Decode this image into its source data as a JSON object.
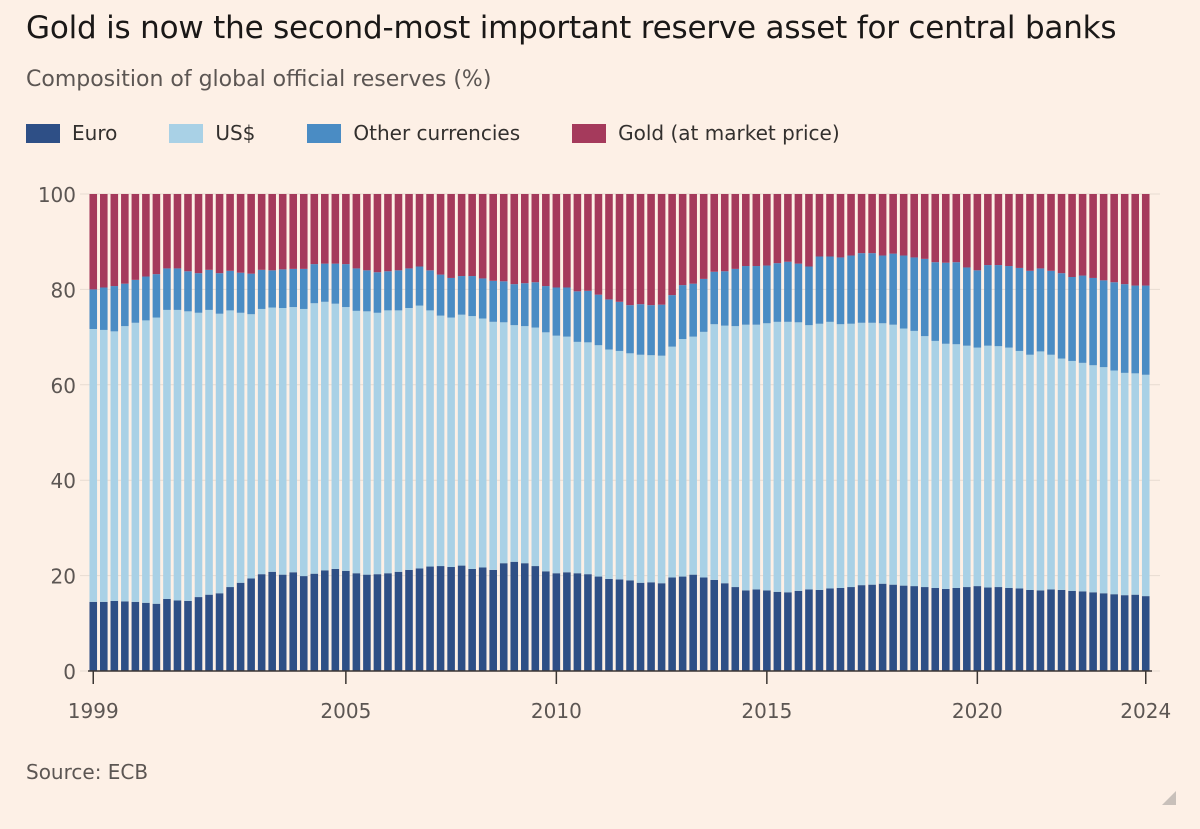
{
  "title": "Gold is now the second-most important reserve asset for central banks",
  "subtitle": "Composition of global official reserves (%)",
  "source": "Source: ECB",
  "colors": {
    "background": "#fdf0e6",
    "euro": "#2e4f86",
    "usd": "#a9d1e6",
    "other": "#4a8cc4",
    "gold": "#a53a5c",
    "grid": "#e7dbd1"
  },
  "legend": [
    {
      "label": "Euro",
      "color": "#2e4f86"
    },
    {
      "label": "US$",
      "color": "#a9d1e6"
    },
    {
      "label": "Other currencies",
      "color": "#4a8cc4"
    },
    {
      "label": "Gold (at market price)",
      "color": "#a53a5c"
    }
  ],
  "chart_data": {
    "type": "bar",
    "stacked": true,
    "frequency": "quarterly",
    "x_start": 1999,
    "ylim": [
      0,
      100
    ],
    "yticks": [
      0,
      20,
      40,
      60,
      80,
      100
    ],
    "xticks": [
      "1999",
      "2005",
      "2010",
      "2015",
      "2020",
      "2024"
    ],
    "grid": true,
    "legend_position": "top",
    "series": [
      {
        "name": "Euro",
        "values": [
          14.5,
          14.5,
          14.7,
          14.6,
          14.5,
          14.3,
          14.1,
          15.1,
          14.8,
          14.7,
          15.5,
          16.0,
          16.3,
          17.6,
          18.5,
          19.4,
          20.3,
          20.8,
          20.2,
          20.7,
          19.9,
          20.4,
          21.1,
          21.4,
          21.0,
          20.5,
          20.2,
          20.3,
          20.5,
          20.8,
          21.2,
          21.5,
          21.9,
          22.0,
          21.8,
          22.1,
          21.4,
          21.7,
          21.2,
          22.6,
          22.9,
          22.6,
          22.0,
          20.9,
          20.5,
          20.7,
          20.5,
          20.3,
          19.8,
          19.3,
          19.2,
          19.0,
          18.5,
          18.6,
          18.4,
          19.6,
          19.8,
          20.2,
          19.6,
          19.1,
          18.4,
          17.6,
          16.9,
          17.1,
          16.9,
          16.6,
          16.5,
          16.8,
          17.1,
          17.0,
          17.3,
          17.4,
          17.6,
          18.0,
          18.1,
          18.3,
          18.1,
          17.9,
          17.8,
          17.6,
          17.4,
          17.2,
          17.4,
          17.6,
          17.8,
          17.5,
          17.6,
          17.4,
          17.3,
          17.0,
          16.9,
          17.1,
          17.0,
          16.8,
          16.7,
          16.5,
          16.3,
          16.1,
          15.9,
          16.0,
          15.7
        ]
      },
      {
        "name": "US$",
        "values": [
          57.2,
          57.0,
          56.5,
          57.7,
          58.5,
          59.2,
          60.0,
          60.6,
          60.9,
          60.7,
          59.6,
          59.7,
          58.6,
          58.0,
          56.6,
          55.4,
          55.6,
          55.4,
          55.9,
          55.6,
          56.0,
          56.7,
          56.3,
          55.6,
          55.3,
          55.0,
          55.2,
          54.8,
          55.1,
          54.8,
          54.9,
          55.1,
          53.7,
          52.5,
          52.3,
          52.6,
          53.0,
          52.2,
          52.0,
          50.5,
          49.6,
          49.7,
          50.0,
          50.1,
          49.8,
          49.4,
          48.5,
          48.6,
          48.5,
          48.1,
          47.9,
          47.6,
          47.8,
          47.6,
          47.7,
          48.4,
          49.8,
          49.9,
          51.5,
          53.6,
          54.0,
          54.7,
          55.7,
          55.5,
          56.0,
          56.6,
          56.7,
          56.3,
          55.4,
          55.8,
          55.9,
          55.3,
          55.2,
          55.0,
          54.9,
          54.6,
          54.5,
          53.9,
          53.5,
          52.6,
          51.8,
          51.4,
          51.1,
          50.6,
          50.0,
          50.7,
          50.5,
          50.4,
          49.8,
          49.3,
          50.1,
          49.2,
          48.5,
          48.2,
          47.9,
          47.6,
          47.4,
          46.9,
          46.6,
          46.4,
          46.4
        ]
      },
      {
        "name": "Other currencies",
        "values": [
          8.3,
          8.9,
          9.5,
          8.9,
          9.0,
          9.2,
          9.1,
          8.7,
          8.7,
          8.4,
          8.3,
          8.4,
          8.5,
          8.3,
          8.4,
          8.5,
          8.2,
          7.8,
          8.1,
          8.0,
          8.4,
          8.2,
          8.0,
          8.4,
          9.0,
          8.9,
          8.6,
          8.5,
          8.2,
          8.4,
          8.3,
          8.2,
          8.4,
          8.6,
          8.3,
          8.1,
          8.4,
          8.4,
          8.6,
          8.6,
          8.6,
          9.0,
          9.5,
          9.7,
          10.1,
          10.3,
          10.6,
          10.8,
          10.6,
          10.5,
          10.3,
          10.1,
          10.6,
          10.5,
          10.7,
          10.8,
          11.3,
          11.1,
          11.1,
          11.0,
          11.4,
          12.0,
          12.3,
          12.3,
          12.1,
          12.3,
          12.6,
          12.3,
          12.3,
          14.1,
          13.7,
          14.0,
          14.3,
          14.6,
          14.6,
          14.2,
          14.9,
          15.3,
          15.4,
          16.2,
          16.5,
          17.0,
          17.2,
          16.4,
          16.2,
          16.9,
          17.0,
          17.1,
          17.4,
          17.6,
          17.4,
          17.6,
          17.9,
          17.6,
          18.3,
          18.3,
          18.2,
          18.5,
          18.6,
          18.4,
          18.7
        ]
      },
      {
        "name": "Gold (at market price)",
        "values": [
          20.0,
          19.6,
          19.3,
          18.8,
          18.0,
          17.3,
          16.8,
          15.6,
          15.6,
          16.2,
          16.6,
          15.9,
          16.6,
          16.1,
          16.5,
          16.7,
          15.9,
          16.0,
          15.8,
          15.7,
          15.7,
          14.7,
          14.6,
          14.6,
          14.7,
          15.6,
          16.0,
          16.4,
          16.2,
          16.0,
          15.6,
          15.2,
          16.0,
          16.9,
          17.6,
          17.2,
          17.2,
          17.7,
          18.2,
          18.3,
          18.9,
          18.7,
          18.5,
          19.3,
          19.6,
          19.6,
          20.4,
          20.3,
          21.1,
          22.1,
          22.6,
          23.3,
          23.1,
          23.3,
          23.2,
          21.2,
          19.1,
          18.8,
          17.8,
          16.3,
          16.2,
          15.7,
          15.1,
          15.1,
          15.0,
          14.5,
          14.2,
          14.6,
          15.2,
          13.1,
          13.1,
          13.3,
          12.9,
          12.4,
          12.4,
          12.9,
          12.5,
          12.9,
          13.3,
          13.6,
          14.3,
          14.4,
          14.3,
          15.4,
          16.0,
          14.9,
          14.9,
          15.1,
          15.5,
          16.1,
          15.6,
          16.1,
          16.6,
          17.4,
          17.1,
          17.6,
          18.1,
          18.5,
          18.9,
          19.2,
          19.2
        ]
      }
    ]
  }
}
